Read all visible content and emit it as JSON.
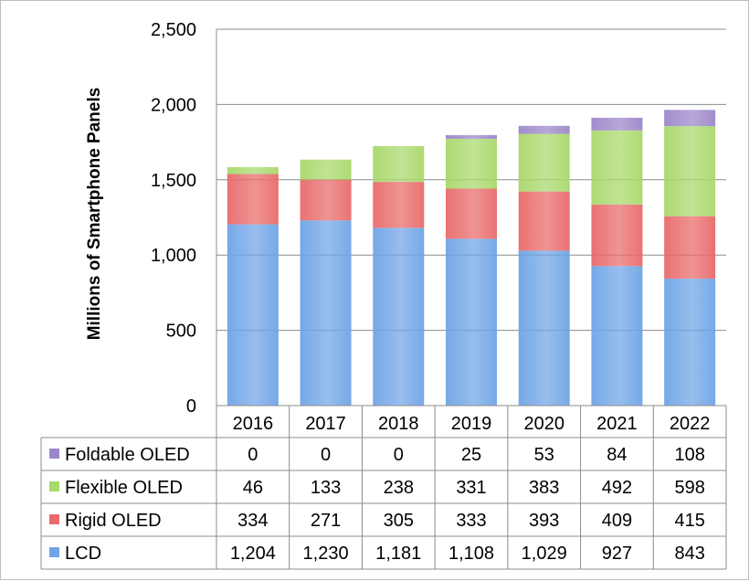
{
  "chart_data": {
    "type": "bar",
    "stacked": true,
    "title": "",
    "xlabel": "",
    "ylabel": "Millions of Smartphone Panels",
    "ylim": [
      0,
      2500
    ],
    "yticks": [
      0,
      500,
      1000,
      1500,
      2000,
      2500
    ],
    "ytick_labels": [
      "0",
      "500",
      "1,000",
      "1,500",
      "2,000",
      "2,500"
    ],
    "grid": true,
    "legend": "data-table-left",
    "categories": [
      "2016",
      "2017",
      "2018",
      "2019",
      "2020",
      "2021",
      "2022"
    ],
    "series": [
      {
        "name": "LCD",
        "color": "#6fa4e6",
        "values": [
          1204,
          1230,
          1181,
          1108,
          1029,
          927,
          843
        ],
        "labels": [
          "1,204",
          "1,230",
          "1,181",
          "1,108",
          "1,029",
          "927",
          "843"
        ]
      },
      {
        "name": "Rigid OLED",
        "color": "#e96a6a",
        "values": [
          334,
          271,
          305,
          333,
          393,
          409,
          415
        ],
        "labels": [
          "334",
          "271",
          "305",
          "333",
          "393",
          "409",
          "415"
        ]
      },
      {
        "name": "Flexible OLED",
        "color": "#a9d86b",
        "values": [
          46,
          133,
          238,
          331,
          383,
          492,
          598
        ],
        "labels": [
          "46",
          "133",
          "238",
          "331",
          "383",
          "492",
          "598"
        ]
      },
      {
        "name": "Foldable OLED",
        "color": "#9b86c9",
        "values": [
          0,
          0,
          0,
          25,
          53,
          84,
          108
        ],
        "labels": [
          "0",
          "0",
          "0",
          "25",
          "53",
          "84",
          "108"
        ]
      }
    ]
  }
}
